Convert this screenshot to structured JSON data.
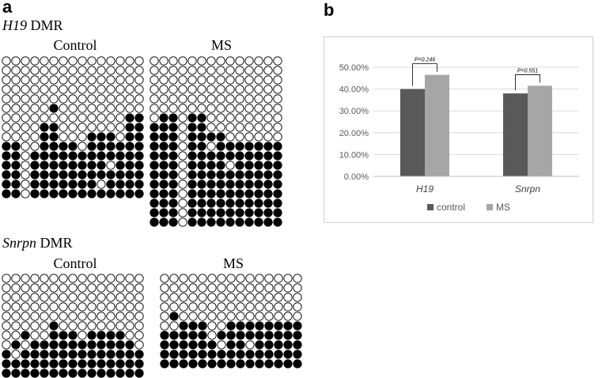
{
  "panel_a_label": "a",
  "panel_b_label": "b",
  "h19_section": {
    "gene": "H19",
    "suffix": " DMR",
    "groups": [
      {
        "label": "Control",
        "columns": 15,
        "rows": [
          "000000000000000",
          "000000000000000",
          "000000000000000",
          "000000000000000",
          "000000000000000",
          "000001000000000",
          "000000000000011",
          "000011000000011",
          "000011000111011",
          "110011110111111",
          "110111111111111",
          "110111111110111",
          "110111111111111",
          "110111111101111",
          "110111111111111"
        ]
      },
      {
        "label": "MS",
        "columns": 14,
        "rows": [
          "00000000000000",
          "00000000000000",
          "00000000000000",
          "00000000000000",
          "00000000000000",
          "00000000000000",
          "01101100000000",
          "11101100000000",
          "11101111000000",
          "11101101111111",
          "11101111111111",
          "11101111011111",
          "11101111111111",
          "11101111111111",
          "11101111111111",
          "11101111111111",
          "11101111111111",
          "11101111111111"
        ]
      }
    ]
  },
  "snrpn_section": {
    "gene": "Snrpn",
    "suffix": " DMR",
    "groups": [
      {
        "label": "Control",
        "columns": 15,
        "rows": [
          "000000000000000",
          "000000000000000",
          "000000000000000",
          "000000000000000",
          "000000000000000",
          "000001000000000",
          "001001110111100",
          "010111111111110",
          "101111111111111",
          "111111111111111",
          "111111111111111"
        ]
      },
      {
        "label": "MS",
        "columns": 15,
        "rows": [
          "000000000000000",
          "000000000000000",
          "000000000000000",
          "000000000000000",
          "010000000000000",
          "001110011111111",
          "111110111111111",
          "111111011011111",
          "111111111111111",
          "111111111111111"
        ]
      }
    ]
  },
  "chart_data": {
    "type": "bar",
    "categories": [
      "H19",
      "Snrpn"
    ],
    "series": [
      {
        "name": "control",
        "values": [
          40.0,
          38.0
        ],
        "color": "#595959"
      },
      {
        "name": "MS",
        "values": [
          46.5,
          41.5
        ],
        "color": "#a6a6a6"
      }
    ],
    "ylim": [
      0,
      50
    ],
    "yticks": [
      "0.00%",
      "10.00%",
      "20.00%",
      "30.00%",
      "40.00%",
      "50.00%"
    ],
    "annotations": [
      "P=0.246",
      "P=0.551"
    ],
    "legend_placement": "bottom",
    "grid": true
  }
}
